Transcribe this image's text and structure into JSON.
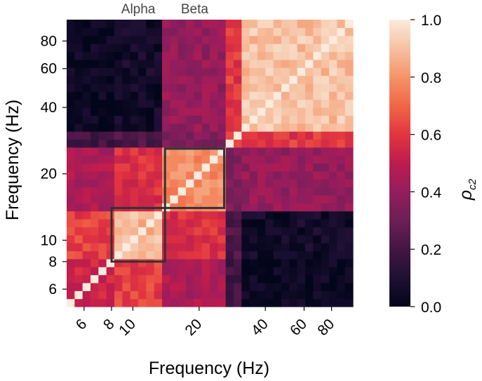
{
  "chart_data": {
    "type": "heatmap",
    "title": "",
    "xlabel": "Frequency (Hz)",
    "ylabel": "Frequency (Hz)",
    "x_scale": "log",
    "y_scale": "log",
    "freq_range_hz": [
      5,
      100
    ],
    "x_ticks": [
      "6",
      "8",
      "10",
      "20",
      "40",
      "60",
      "80"
    ],
    "y_ticks": [
      "6",
      "8",
      "10",
      "20",
      "40",
      "60",
      "80"
    ],
    "tick_values": [
      6,
      8,
      10,
      20,
      40,
      60,
      80
    ],
    "grid": false,
    "colorbar": {
      "label": "ρc2",
      "label_main": "ρ",
      "label_sub": "c2",
      "range": [
        0,
        1
      ],
      "ticks": [
        "0.0",
        "0.2",
        "0.4",
        "0.6",
        "0.8",
        "1.0"
      ],
      "tick_values": [
        0,
        0.2,
        0.4,
        0.6,
        0.8,
        1.0
      ],
      "colormap": "rocket",
      "placement": "right"
    },
    "blocks_hz": [
      {
        "range": [
          5,
          8
        ],
        "value": 0.55
      },
      {
        "range": [
          8,
          14
        ],
        "value": 0.88
      },
      {
        "range": [
          14,
          26
        ],
        "value": 0.78
      },
      {
        "range": [
          26,
          32
        ],
        "value": 0.62
      },
      {
        "range": [
          32,
          100
        ],
        "value": 0.9
      }
    ],
    "cross_values": {
      "5-8|8-14": 0.62,
      "5-8|14-26": 0.45,
      "5-8|26-32": 0.2,
      "5-8|32-100": 0.03,
      "8-14|14-26": 0.58,
      "8-14|26-32": 0.22,
      "8-14|32-100": 0.06,
      "14-26|26-32": 0.35,
      "14-26|32-100": 0.4,
      "26-32|32-100": 0.6
    },
    "diagonal_value": 1.0,
    "highlight_boxes": [
      {
        "label": "Alpha",
        "range_hz": [
          8,
          14
        ]
      },
      {
        "label": "Beta",
        "range_hz": [
          14,
          26
        ]
      }
    ],
    "colors": {
      "box_outline": "#333333"
    }
  }
}
